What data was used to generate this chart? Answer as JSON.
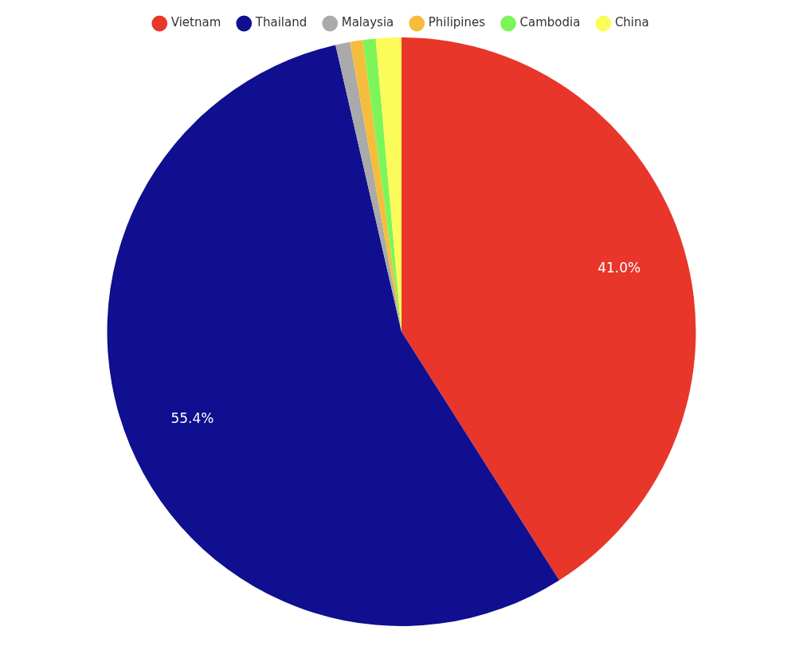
{
  "chart_data": {
    "type": "pie",
    "categories": [
      "Vietnam",
      "Thailand",
      "Malaysia",
      "Philipines",
      "Cambodia",
      "China"
    ],
    "values": [
      41.0,
      55.4,
      0.8,
      0.7,
      0.7,
      1.4
    ],
    "colors": [
      "#e8362a",
      "#0f0f8f",
      "#aaaaaa",
      "#f5bd3c",
      "#7cf55a",
      "#fbfb5a"
    ],
    "value_labels": [
      "41.0%",
      "55.4%",
      null,
      null,
      null,
      null
    ],
    "legend": "top"
  }
}
